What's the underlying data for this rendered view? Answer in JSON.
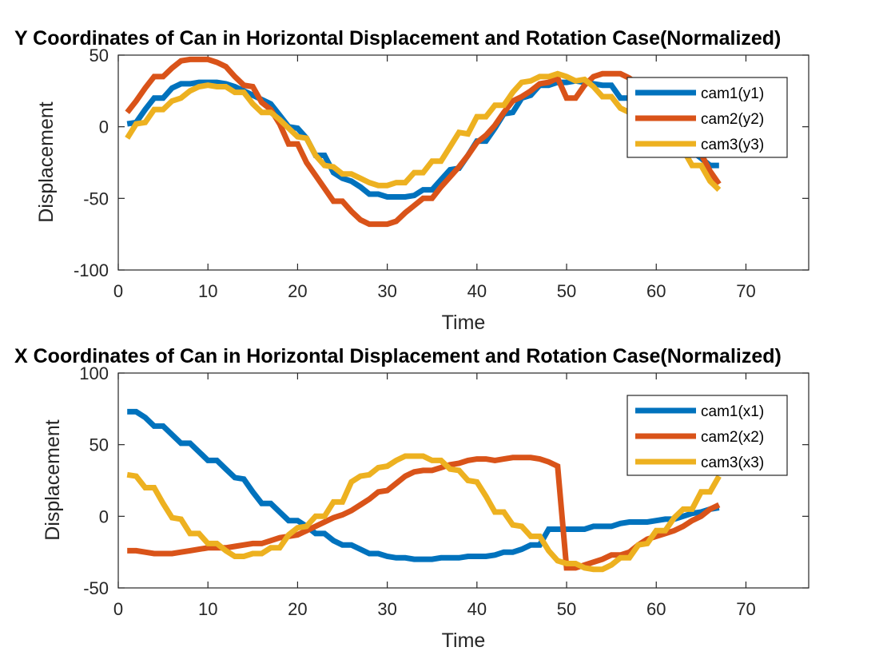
{
  "chart_data": [
    {
      "type": "line",
      "title": "Y Coordinates of Can in Horizontal Displacement and Rotation Case(Normalized)",
      "xlabel": "Time",
      "ylabel": "Displacement",
      "xlim": [
        0,
        77
      ],
      "ylim": [
        -100,
        50
      ],
      "xticks": [
        0,
        10,
        20,
        30,
        40,
        50,
        60,
        70
      ],
      "yticks": [
        -100,
        -50,
        0,
        50
      ],
      "grid": false,
      "legend_position": "top-right",
      "x": [
        1,
        2,
        3,
        4,
        5,
        6,
        7,
        8,
        9,
        10,
        11,
        12,
        13,
        14,
        15,
        16,
        17,
        18,
        19,
        20,
        21,
        22,
        23,
        24,
        25,
        26,
        27,
        28,
        29,
        30,
        31,
        32,
        33,
        34,
        35,
        36,
        37,
        38,
        39,
        40,
        41,
        42,
        43,
        44,
        45,
        46,
        47,
        48,
        49,
        50,
        51,
        52,
        53,
        54,
        55,
        56,
        57,
        58,
        59,
        60,
        61,
        62,
        63,
        64,
        65,
        66,
        67
      ],
      "series": [
        {
          "name": "cam1(y1)",
          "color": "#0072BD",
          "values": [
            2,
            3,
            12,
            20,
            20,
            27,
            30,
            30,
            31,
            31,
            31,
            30,
            28,
            25,
            22,
            19,
            16,
            8,
            0,
            -1,
            -8,
            -20,
            -20,
            -32,
            -36,
            -38,
            -42,
            -47,
            -47,
            -49,
            -49,
            -49,
            -48,
            -44,
            -44,
            -37,
            -30,
            -29,
            -20,
            -10,
            -10,
            -1,
            9,
            10,
            20,
            22,
            29,
            29,
            31,
            31,
            32,
            31,
            30,
            29,
            29,
            20,
            20,
            13,
            12,
            7,
            1,
            -8,
            -14,
            -17,
            -22,
            -27,
            -27
          ]
        },
        {
          "name": "cam2(y2)",
          "color": "#D95319",
          "values": [
            10,
            18,
            27,
            35,
            35,
            41,
            46,
            47,
            47,
            47,
            45,
            42,
            35,
            29,
            28,
            17,
            12,
            2,
            -12,
            -12,
            -25,
            -34,
            -43,
            -52,
            -52,
            -59,
            -65,
            -68,
            -68,
            -68,
            -66,
            -60,
            -55,
            -50,
            -50,
            -42,
            -35,
            -28,
            -20,
            -11,
            -6,
            1,
            10,
            18,
            21,
            25,
            30,
            31,
            34,
            20,
            20,
            29,
            35,
            37,
            37,
            37,
            34,
            29,
            21,
            21,
            11,
            5,
            2,
            -7,
            -19,
            -31,
            -40
          ]
        },
        {
          "name": "cam3(y3)",
          "color": "#EDB120",
          "values": [
            -8,
            2,
            3,
            12,
            12,
            18,
            20,
            25,
            28,
            29,
            28,
            28,
            24,
            24,
            16,
            10,
            10,
            5,
            -1,
            -7,
            -8,
            -20,
            -27,
            -28,
            -33,
            -33,
            -36,
            -39,
            -41,
            -41,
            -39,
            -39,
            -32,
            -32,
            -24,
            -24,
            -14,
            -4,
            -5,
            7,
            7,
            15,
            15,
            24,
            31,
            32,
            35,
            35,
            37,
            35,
            32,
            33,
            28,
            21,
            21,
            13,
            10,
            9,
            8,
            7,
            1,
            -8,
            -16,
            -27,
            -27,
            -38,
            -44
          ]
        }
      ]
    },
    {
      "type": "line",
      "title": "X Coordinates of Can in Horizontal Displacement and Rotation Case(Normalized)",
      "xlabel": "Time",
      "ylabel": "Displacement",
      "xlim": [
        0,
        77
      ],
      "ylim": [
        -50,
        100
      ],
      "xticks": [
        0,
        10,
        20,
        30,
        40,
        50,
        60,
        70
      ],
      "yticks": [
        -50,
        0,
        50,
        100
      ],
      "grid": false,
      "legend_position": "top-right",
      "x": [
        1,
        2,
        3,
        4,
        5,
        6,
        7,
        8,
        9,
        10,
        11,
        12,
        13,
        14,
        15,
        16,
        17,
        18,
        19,
        20,
        21,
        22,
        23,
        24,
        25,
        26,
        27,
        28,
        29,
        30,
        31,
        32,
        33,
        34,
        35,
        36,
        37,
        38,
        39,
        40,
        41,
        42,
        43,
        44,
        45,
        46,
        47,
        48,
        49,
        50,
        51,
        52,
        53,
        54,
        55,
        56,
        57,
        58,
        59,
        60,
        61,
        62,
        63,
        64,
        65,
        66,
        67
      ],
      "series": [
        {
          "name": "cam1(x1)",
          "color": "#0072BD",
          "values": [
            73,
            73,
            69,
            63,
            63,
            57,
            51,
            51,
            45,
            39,
            39,
            33,
            27,
            26,
            17,
            9,
            9,
            3,
            -3,
            -3,
            -7,
            -12,
            -12,
            -17,
            -20,
            -20,
            -23,
            -26,
            -26,
            -28,
            -29,
            -29,
            -30,
            -30,
            -30,
            -29,
            -29,
            -29,
            -28,
            -28,
            -28,
            -27,
            -25,
            -25,
            -23,
            -20,
            -20,
            -9,
            -9,
            -9,
            -9,
            -9,
            -7,
            -7,
            -7,
            -5,
            -4,
            -4,
            -4,
            -3,
            -2,
            -2,
            0,
            2,
            3,
            5,
            6
          ]
        },
        {
          "name": "cam2(x2)",
          "color": "#D95319",
          "values": [
            -24,
            -24,
            -25,
            -26,
            -26,
            -26,
            -25,
            -24,
            -23,
            -22,
            -22,
            -22,
            -21,
            -20,
            -19,
            -19,
            -17,
            -15,
            -14,
            -13,
            -10,
            -7,
            -4,
            -1,
            1,
            4,
            8,
            12,
            17,
            18,
            23,
            28,
            31,
            32,
            32,
            34,
            36,
            37,
            39,
            40,
            40,
            39,
            40,
            41,
            41,
            41,
            40,
            38,
            35,
            -36,
            -36,
            -34,
            -32,
            -30,
            -27,
            -27,
            -25,
            -20,
            -16,
            -14,
            -12,
            -10,
            -7,
            -3,
            0,
            5,
            8
          ]
        },
        {
          "name": "cam3(x3)",
          "color": "#EDB120",
          "values": [
            29,
            28,
            20,
            20,
            9,
            -1,
            -2,
            -12,
            -12,
            -19,
            -19,
            -24,
            -28,
            -28,
            -26,
            -26,
            -22,
            -22,
            -13,
            -8,
            -7,
            0,
            0,
            10,
            10,
            24,
            28,
            29,
            34,
            35,
            39,
            42,
            42,
            42,
            39,
            39,
            33,
            32,
            25,
            24,
            14,
            3,
            3,
            -6,
            -7,
            -14,
            -14,
            -24,
            -31,
            -33,
            -33,
            -36,
            -37,
            -37,
            -34,
            -29,
            -29,
            -20,
            -19,
            -10,
            -10,
            -1,
            5,
            5,
            17,
            17,
            28
          ]
        }
      ]
    }
  ]
}
